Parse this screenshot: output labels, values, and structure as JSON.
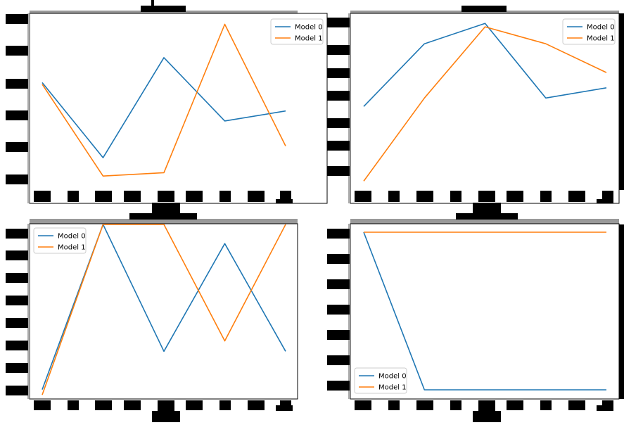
{
  "colors": {
    "model_0": "#1f77b4",
    "model_1": "#ff7f0e",
    "redaction": "#000000"
  },
  "chart_data": [
    {
      "type": "line",
      "x": [
        0,
        1,
        2,
        3,
        4
      ],
      "ylim": [
        0,
        100
      ],
      "legend": "upper-right",
      "series": [
        {
          "name": "Model 0",
          "values": [
            61,
            16,
            76,
            38,
            44
          ]
        },
        {
          "name": "Model 1",
          "values": [
            60,
            5,
            7,
            96,
            23
          ]
        }
      ]
    },
    {
      "type": "line",
      "x": [
        0,
        1,
        2,
        3,
        4
      ],
      "ylim": [
        0,
        100
      ],
      "legend": "upper-right",
      "series": [
        {
          "name": "Model 0",
          "values": [
            48,
            85,
            97,
            53,
            59
          ]
        },
        {
          "name": "Model 1",
          "values": [
            4,
            53,
            95,
            85,
            68
          ]
        }
      ]
    },
    {
      "type": "line",
      "x": [
        0,
        1,
        2,
        3,
        4
      ],
      "ylim": [
        0,
        100
      ],
      "legend": "upper-left",
      "series": [
        {
          "name": "Model 0",
          "values": [
            5,
            100,
            27,
            89,
            27
          ]
        },
        {
          "name": "Model 1",
          "values": [
            2,
            100,
            100,
            33,
            100
          ]
        }
      ]
    },
    {
      "type": "line",
      "x": [
        0,
        1,
        2,
        3,
        4
      ],
      "ylim": [
        0,
        100
      ],
      "legend": "lower-left",
      "series": [
        {
          "name": "Model 0",
          "values": [
            100,
            0,
            0,
            0,
            0
          ]
        },
        {
          "name": "Model 1",
          "values": [
            100,
            100,
            100,
            100,
            100
          ]
        }
      ]
    }
  ]
}
